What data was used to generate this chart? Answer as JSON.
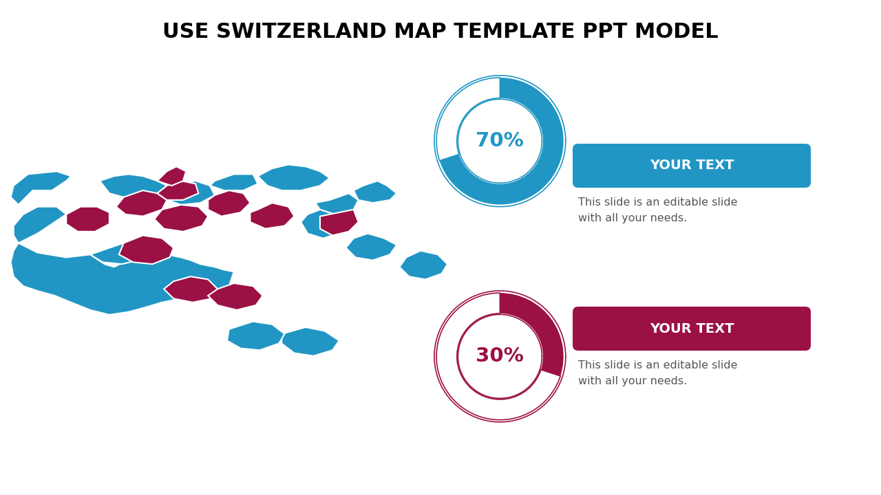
{
  "title": "USE SWITZERLAND MAP TEMPLATE PPT MODEL",
  "title_fontsize": 22,
  "title_fontweight": "bold",
  "bg_color": "#ffffff",
  "blue_color": "#2196c4",
  "maroon_color": "#9b1045",
  "border_color": "#ffffff",
  "pct1": "70%",
  "pct2": "30%",
  "label1": "YOUR TEXT",
  "label2": "YOUR TEXT",
  "desc1": "This slide is an editable slide\nwith all your needs.",
  "desc2": "This slide is an editable slide\nwith all your needs.",
  "text_color": "#555555",
  "donut1_pct": 0.7,
  "donut2_pct": 0.3,
  "map_xlim": [
    5.9,
    10.5
  ],
  "map_ylim": [
    45.8,
    47.9
  ],
  "cantons_blue": [
    [
      [
        6.0,
        47.4
      ],
      [
        6.15,
        47.55
      ],
      [
        6.35,
        47.55
      ],
      [
        6.5,
        47.65
      ],
      [
        6.55,
        47.7
      ],
      [
        6.4,
        47.75
      ],
      [
        6.1,
        47.72
      ],
      [
        5.95,
        47.6
      ],
      [
        5.92,
        47.48
      ]
    ],
    [
      [
        6.0,
        47.0
      ],
      [
        6.2,
        46.9
      ],
      [
        6.5,
        46.85
      ],
      [
        6.75,
        46.88
      ],
      [
        6.9,
        46.78
      ],
      [
        7.0,
        46.75
      ],
      [
        7.1,
        46.8
      ],
      [
        7.2,
        46.85
      ],
      [
        7.35,
        46.9
      ],
      [
        7.45,
        46.95
      ],
      [
        7.55,
        46.88
      ],
      [
        7.7,
        46.85
      ],
      [
        7.8,
        46.82
      ],
      [
        7.9,
        46.78
      ],
      [
        8.05,
        46.75
      ],
      [
        8.15,
        46.72
      ],
      [
        8.25,
        46.7
      ],
      [
        8.2,
        46.55
      ],
      [
        8.05,
        46.48
      ],
      [
        7.9,
        46.45
      ],
      [
        7.7,
        46.42
      ],
      [
        7.5,
        46.38
      ],
      [
        7.3,
        46.32
      ],
      [
        7.15,
        46.28
      ],
      [
        6.95,
        46.25
      ],
      [
        6.75,
        46.3
      ],
      [
        6.55,
        46.38
      ],
      [
        6.38,
        46.45
      ],
      [
        6.2,
        46.5
      ],
      [
        6.05,
        46.55
      ],
      [
        5.95,
        46.65
      ],
      [
        5.92,
        46.8
      ],
      [
        5.95,
        46.92
      ]
    ],
    [
      [
        6.0,
        47.0
      ],
      [
        6.2,
        47.1
      ],
      [
        6.35,
        47.2
      ],
      [
        6.5,
        47.3
      ],
      [
        6.4,
        47.38
      ],
      [
        6.2,
        47.38
      ],
      [
        6.05,
        47.3
      ],
      [
        5.95,
        47.18
      ],
      [
        5.95,
        47.08
      ]
    ],
    [
      [
        6.85,
        47.65
      ],
      [
        7.0,
        47.7
      ],
      [
        7.15,
        47.72
      ],
      [
        7.3,
        47.7
      ],
      [
        7.45,
        47.65
      ],
      [
        7.55,
        47.6
      ],
      [
        7.45,
        47.52
      ],
      [
        7.3,
        47.48
      ],
      [
        7.1,
        47.48
      ],
      [
        6.95,
        47.52
      ]
    ],
    [
      [
        9.5,
        47.55
      ],
      [
        9.6,
        47.6
      ],
      [
        9.75,
        47.65
      ],
      [
        9.85,
        47.6
      ],
      [
        9.95,
        47.52
      ],
      [
        9.88,
        47.45
      ],
      [
        9.7,
        47.42
      ],
      [
        9.55,
        47.45
      ]
    ],
    [
      [
        8.5,
        47.7
      ],
      [
        8.65,
        47.78
      ],
      [
        8.82,
        47.82
      ],
      [
        9.0,
        47.8
      ],
      [
        9.15,
        47.75
      ],
      [
        9.25,
        47.68
      ],
      [
        9.15,
        47.6
      ],
      [
        8.95,
        47.55
      ],
      [
        8.75,
        47.55
      ],
      [
        8.6,
        47.6
      ]
    ],
    [
      [
        8.05,
        47.65
      ],
      [
        8.25,
        47.72
      ],
      [
        8.45,
        47.72
      ],
      [
        8.5,
        47.62
      ],
      [
        8.35,
        47.55
      ],
      [
        8.15,
        47.55
      ],
      [
        8.0,
        47.6
      ]
    ],
    [
      [
        7.55,
        47.55
      ],
      [
        7.7,
        47.62
      ],
      [
        7.85,
        47.65
      ],
      [
        8.0,
        47.6
      ],
      [
        8.05,
        47.5
      ],
      [
        7.9,
        47.42
      ],
      [
        7.7,
        47.4
      ],
      [
        7.55,
        47.45
      ]
    ],
    [
      [
        9.25,
        47.45
      ],
      [
        9.45,
        47.52
      ],
      [
        9.55,
        47.45
      ],
      [
        9.5,
        47.35
      ],
      [
        9.3,
        47.3
      ],
      [
        9.15,
        47.35
      ],
      [
        9.1,
        47.42
      ]
    ],
    [
      [
        9.5,
        47.05
      ],
      [
        9.65,
        47.1
      ],
      [
        9.82,
        47.05
      ],
      [
        9.95,
        46.98
      ],
      [
        9.88,
        46.88
      ],
      [
        9.7,
        46.82
      ],
      [
        9.52,
        46.85
      ],
      [
        9.42,
        46.95
      ]
    ],
    [
      [
        10.05,
        46.85
      ],
      [
        10.2,
        46.92
      ],
      [
        10.38,
        46.88
      ],
      [
        10.48,
        46.78
      ],
      [
        10.42,
        46.68
      ],
      [
        10.25,
        46.62
      ],
      [
        10.08,
        46.65
      ],
      [
        9.98,
        46.75
      ]
    ],
    [
      [
        8.75,
        46.05
      ],
      [
        9.0,
        46.12
      ],
      [
        9.2,
        46.08
      ],
      [
        9.35,
        45.98
      ],
      [
        9.28,
        45.88
      ],
      [
        9.08,
        45.82
      ],
      [
        8.88,
        45.85
      ],
      [
        8.75,
        45.95
      ]
    ],
    [
      [
        8.2,
        46.1
      ],
      [
        8.45,
        46.18
      ],
      [
        8.65,
        46.15
      ],
      [
        8.78,
        46.05
      ],
      [
        8.72,
        45.95
      ],
      [
        8.52,
        45.88
      ],
      [
        8.32,
        45.9
      ],
      [
        8.18,
        45.98
      ]
    ],
    [
      [
        6.75,
        46.88
      ],
      [
        6.95,
        46.95
      ],
      [
        7.1,
        47.0
      ],
      [
        7.25,
        46.98
      ],
      [
        7.35,
        46.9
      ],
      [
        7.25,
        46.82
      ],
      [
        7.08,
        46.78
      ],
      [
        6.88,
        46.8
      ]
    ],
    [
      [
        9.15,
        47.35
      ],
      [
        9.3,
        47.3
      ],
      [
        9.42,
        47.2
      ],
      [
        9.35,
        47.1
      ],
      [
        9.18,
        47.05
      ],
      [
        9.02,
        47.1
      ],
      [
        8.95,
        47.22
      ],
      [
        9.02,
        47.3
      ]
    ]
  ],
  "cantons_maroon": [
    [
      [
        7.1,
        47.48
      ],
      [
        7.3,
        47.55
      ],
      [
        7.45,
        47.52
      ],
      [
        7.55,
        47.45
      ],
      [
        7.5,
        47.35
      ],
      [
        7.3,
        47.28
      ],
      [
        7.12,
        47.3
      ],
      [
        7.02,
        47.38
      ]
    ],
    [
      [
        7.55,
        47.6
      ],
      [
        7.7,
        47.65
      ],
      [
        7.85,
        47.62
      ],
      [
        7.88,
        47.52
      ],
      [
        7.72,
        47.45
      ],
      [
        7.55,
        47.45
      ],
      [
        7.45,
        47.52
      ]
    ],
    [
      [
        7.45,
        47.65
      ],
      [
        7.55,
        47.75
      ],
      [
        7.65,
        47.8
      ],
      [
        7.75,
        47.75
      ],
      [
        7.72,
        47.65
      ],
      [
        7.6,
        47.6
      ]
    ],
    [
      [
        6.5,
        47.3
      ],
      [
        6.65,
        47.38
      ],
      [
        6.82,
        47.38
      ],
      [
        6.95,
        47.32
      ],
      [
        6.95,
        47.2
      ],
      [
        6.8,
        47.12
      ],
      [
        6.62,
        47.12
      ],
      [
        6.5,
        47.2
      ]
    ],
    [
      [
        7.1,
        47.0
      ],
      [
        7.3,
        47.08
      ],
      [
        7.5,
        47.05
      ],
      [
        7.62,
        46.95
      ],
      [
        7.58,
        46.85
      ],
      [
        7.4,
        46.78
      ],
      [
        7.2,
        46.8
      ],
      [
        7.05,
        46.88
      ]
    ],
    [
      [
        7.5,
        47.35
      ],
      [
        7.7,
        47.4
      ],
      [
        7.88,
        47.38
      ],
      [
        7.98,
        47.28
      ],
      [
        7.92,
        47.18
      ],
      [
        7.72,
        47.12
      ],
      [
        7.52,
        47.15
      ],
      [
        7.42,
        47.25
      ]
    ],
    [
      [
        8.05,
        47.5
      ],
      [
        8.2,
        47.55
      ],
      [
        8.35,
        47.52
      ],
      [
        8.42,
        47.42
      ],
      [
        8.32,
        47.32
      ],
      [
        8.12,
        47.28
      ],
      [
        7.98,
        47.35
      ],
      [
        7.98,
        47.45
      ]
    ],
    [
      [
        8.5,
        47.35
      ],
      [
        8.65,
        47.42
      ],
      [
        8.82,
        47.38
      ],
      [
        8.88,
        47.28
      ],
      [
        8.78,
        47.18
      ],
      [
        8.58,
        47.15
      ],
      [
        8.42,
        47.22
      ],
      [
        8.42,
        47.32
      ]
    ],
    [
      [
        7.62,
        46.6
      ],
      [
        7.8,
        46.65
      ],
      [
        7.98,
        46.62
      ],
      [
        8.08,
        46.52
      ],
      [
        8.02,
        46.42
      ],
      [
        7.82,
        46.38
      ],
      [
        7.62,
        46.42
      ],
      [
        7.52,
        46.52
      ]
    ],
    [
      [
        8.08,
        46.52
      ],
      [
        8.25,
        46.58
      ],
      [
        8.45,
        46.55
      ],
      [
        8.55,
        46.45
      ],
      [
        8.48,
        46.35
      ],
      [
        8.28,
        46.3
      ],
      [
        8.08,
        46.35
      ],
      [
        7.98,
        46.45
      ]
    ],
    [
      [
        9.5,
        47.35
      ],
      [
        9.55,
        47.22
      ],
      [
        9.45,
        47.12
      ],
      [
        9.28,
        47.08
      ],
      [
        9.15,
        47.15
      ],
      [
        9.15,
        47.28
      ]
    ]
  ]
}
